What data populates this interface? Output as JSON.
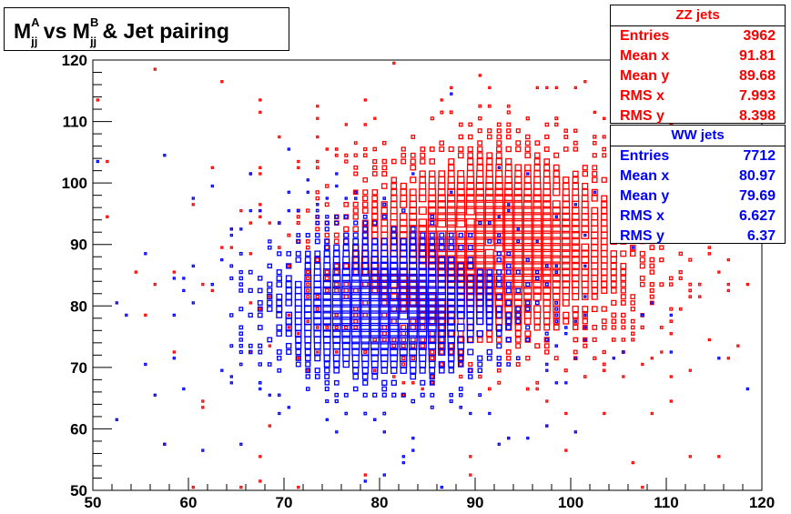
{
  "title": {
    "main": "M",
    "sub_a": "jj",
    "sup_a": "A",
    "mid": " vs M",
    "sub_b": "jj",
    "sup_b": "B",
    "tail": " & Jet pairing"
  },
  "stats": {
    "zz": {
      "name": "ZZ jets",
      "color": "#ff0000",
      "rows": [
        {
          "label": "Entries",
          "value": "3962"
        },
        {
          "label": "Mean x",
          "value": "91.81"
        },
        {
          "label": "Mean y",
          "value": "89.68"
        },
        {
          "label": "RMS x",
          "value": "7.993"
        },
        {
          "label": "RMS y",
          "value": "8.398"
        }
      ]
    },
    "ww": {
      "name": "WW jets",
      "color": "#0000ff",
      "rows": [
        {
          "label": "Entries",
          "value": "7712"
        },
        {
          "label": "Mean x",
          "value": "80.97"
        },
        {
          "label": "Mean y",
          "value": "79.69"
        },
        {
          "label": "RMS x",
          "value": "6.627"
        },
        {
          "label": "RMS y",
          "value": "6.37"
        }
      ]
    }
  },
  "chart_data": {
    "type": "heatmap",
    "xlim": [
      50,
      120
    ],
    "ylim": [
      50,
      120
    ],
    "x_ticks": [
      50,
      60,
      70,
      80,
      90,
      100,
      110,
      120
    ],
    "y_ticks": [
      50,
      60,
      70,
      80,
      90,
      100,
      110,
      120
    ],
    "grid": false,
    "series": [
      {
        "name": "ZZ jets",
        "color": "#ff0000",
        "entries": 3962,
        "mean_x": 91.81,
        "mean_y": 89.68,
        "rms_x": 7.993,
        "rms_y": 8.398
      },
      {
        "name": "WW jets",
        "color": "#0000ff",
        "entries": 7712,
        "mean_x": 80.97,
        "mean_y": 79.69,
        "rms_x": 6.627,
        "rms_y": 6.37
      }
    ]
  }
}
